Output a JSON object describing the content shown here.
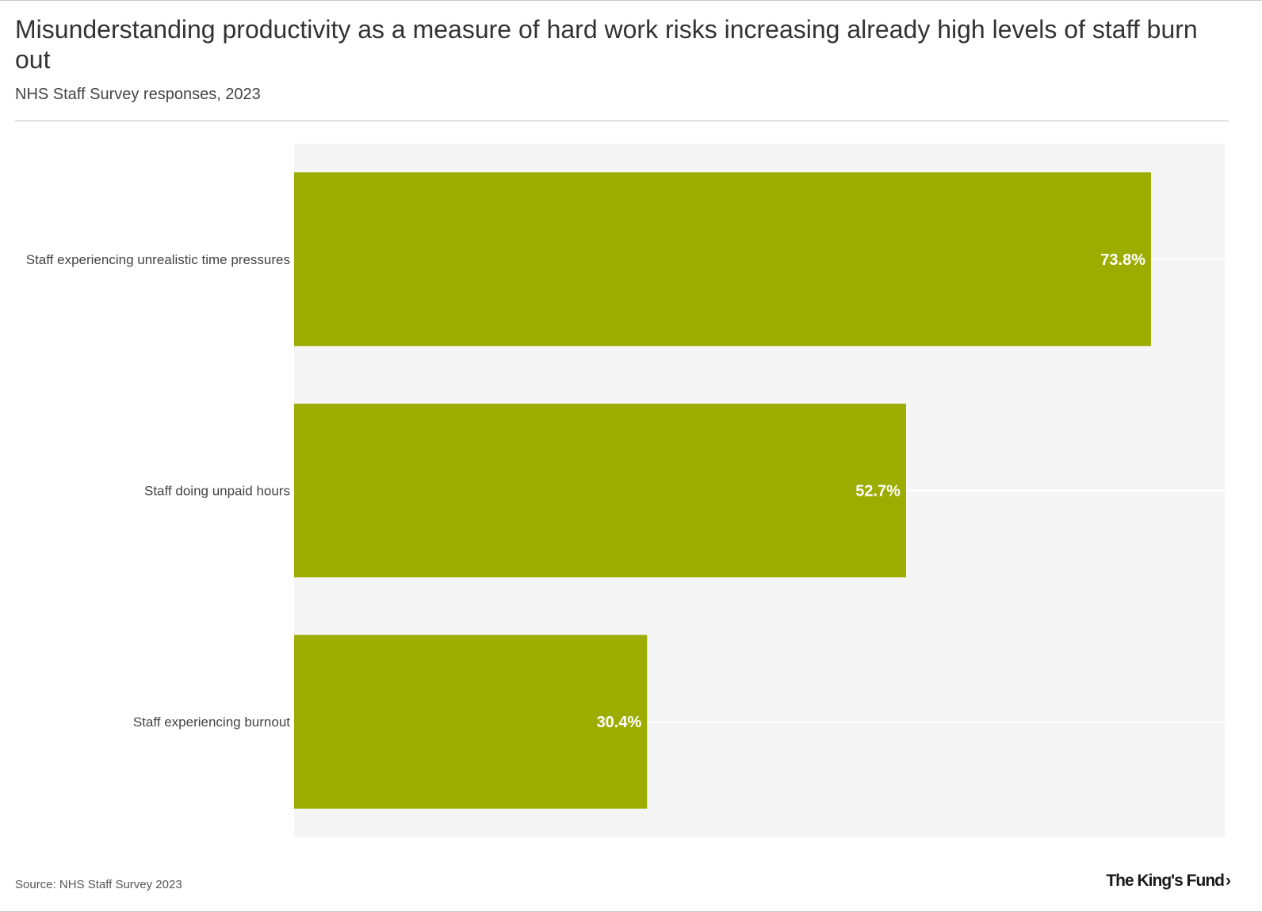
{
  "header": {
    "title": "Misunderstanding productivity as a measure of hard work risks increasing already high levels of staff burn out",
    "subtitle": "NHS Staff Survey responses, 2023"
  },
  "footer": {
    "source": "Source: NHS Staff Survey 2023",
    "logo_text": "The King's Fund",
    "logo_chevron": "›"
  },
  "colors": {
    "bar": "#9dad00",
    "plot_background": "#f5f5f5",
    "gridline": "#ffffff",
    "value_label": "#ffffff"
  },
  "chart_data": {
    "type": "bar",
    "orientation": "horizontal",
    "title": "Misunderstanding productivity as a measure of hard work risks increasing already high levels of staff burn out",
    "subtitle": "NHS Staff Survey responses, 2023",
    "categories": [
      "Staff experiencing unrealistic time pressures",
      "Staff doing unpaid hours",
      "Staff experiencing burnout"
    ],
    "values": [
      73.8,
      52.7,
      30.4
    ],
    "value_labels": [
      "73.8%",
      "52.7%",
      "30.4%"
    ],
    "xlabel": "",
    "ylabel": "",
    "xlim": [
      0,
      80
    ],
    "grid": true,
    "legend": "none"
  }
}
